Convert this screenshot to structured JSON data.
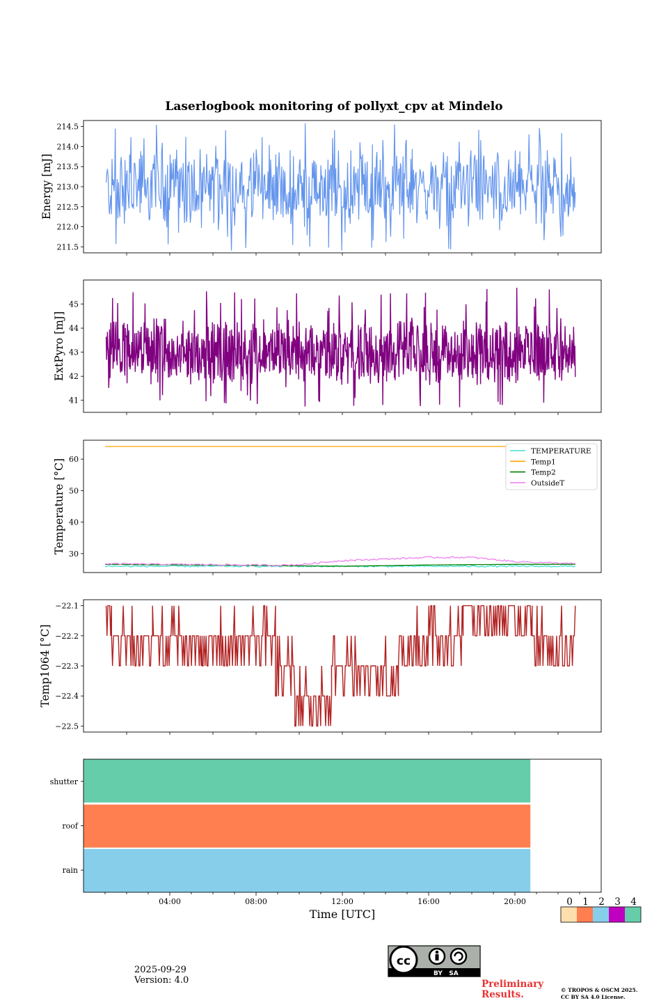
{
  "figure": {
    "title": "Laserlogbook monitoring of pollyxt_cpv at Mindelo",
    "xlabel": "Time [UTC]",
    "xticks": [
      "04:00",
      "08:00",
      "12:00",
      "16:00",
      "20:00"
    ],
    "xrange_hours": [
      0,
      24
    ]
  },
  "chart_data": [
    {
      "type": "line",
      "ylabel": "Energy [mJ]",
      "ylim": [
        211.35,
        214.65
      ],
      "yticks": [
        "211.5",
        "212.0",
        "212.5",
        "213.0",
        "213.5",
        "214.0",
        "214.5"
      ],
      "color": "#6495ed",
      "series": [
        {
          "name": "Energy",
          "x_start_hour": 1.05,
          "x_end_hour": 22.8,
          "mean": 212.95,
          "min": 211.4,
          "max": 214.6
        }
      ]
    },
    {
      "type": "line",
      "ylabel": "ExtPyro [mJ]",
      "ylim": [
        40.5,
        46.0
      ],
      "yticks": [
        "41",
        "42",
        "43",
        "44",
        "45"
      ],
      "color": "#800080",
      "series": [
        {
          "name": "ExtPyro",
          "x_start_hour": 1.05,
          "x_end_hour": 22.8,
          "mean": 43.0,
          "min": 40.7,
          "max": 45.7
        }
      ]
    },
    {
      "type": "line",
      "ylabel": "Temperature [°C]",
      "ylim": [
        24,
        66
      ],
      "yticks": [
        "30",
        "40",
        "50",
        "60"
      ],
      "legend": "top-right",
      "series": [
        {
          "name": "TEMPERATURE",
          "color": "#40e0d0",
          "x": [
            1,
            22.8
          ],
          "y": [
            26.0,
            26.0
          ]
        },
        {
          "name": "Temp1",
          "color": "#ffa500",
          "x": [
            1,
            22.8
          ],
          "y": [
            64.0,
            64.0
          ]
        },
        {
          "name": "Temp2",
          "color": "#008000",
          "x": [
            1,
            9,
            12,
            16,
            20,
            22.8
          ],
          "y": [
            26.6,
            26.2,
            26.0,
            26.4,
            26.6,
            26.6
          ]
        },
        {
          "name": "OutsideT",
          "color": "#ee82ee",
          "x": [
            1,
            9,
            10,
            12,
            14,
            16,
            18,
            20,
            22.8
          ],
          "y": [
            26.8,
            26.3,
            26.5,
            27.8,
            28.3,
            28.8,
            28.8,
            27.5,
            26.8
          ]
        }
      ]
    },
    {
      "type": "line",
      "ylabel": "Temp1064 [°C]",
      "ylim": [
        -22.52,
        -22.08
      ],
      "yticks": [
        "−22.1",
        "−22.2",
        "−22.3",
        "−22.4",
        "−22.5"
      ],
      "color": "#b22222",
      "series": [
        {
          "name": "Temp1064",
          "levels": [
            -22.1,
            -22.2,
            -22.3,
            -22.4,
            -22.5
          ],
          "segments_hours": [
            [
              1.05,
              1.3,
              -22.1
            ],
            [
              1.3,
              3.2,
              -22.2
            ],
            [
              3.2,
              5.5,
              -22.2
            ],
            [
              5.5,
              8.9,
              -22.2
            ],
            [
              8.9,
              9.8,
              -22.3
            ],
            [
              9.8,
              11.5,
              -22.4
            ],
            [
              11.5,
              13.0,
              -22.3
            ],
            [
              13.0,
              14.6,
              -22.3
            ],
            [
              14.6,
              17.6,
              -22.2
            ],
            [
              17.6,
              20.8,
              -22.1
            ],
            [
              20.8,
              22.8,
              -22.2
            ]
          ]
        }
      ]
    },
    {
      "type": "heatmap",
      "rows": [
        "shutter",
        "roof",
        "rain"
      ],
      "end_hour": 20.7,
      "row_values": [
        4,
        1,
        2
      ],
      "colorbar": {
        "ticks": [
          "0",
          "1",
          "2",
          "3",
          "4"
        ],
        "colors": [
          "#ffdead",
          "#ff7f50",
          "#87ceeb",
          "#c000c0",
          "#66cdaa"
        ]
      }
    }
  ],
  "footer": {
    "date": "2025-09-29",
    "version": "Version: 4.0",
    "license_badge": "BY   SA",
    "preliminary": [
      "Preliminary",
      "Results."
    ],
    "copyright": [
      "© TROPOS & OSCM 2025.",
      "CC BY SA 4.0 License."
    ]
  }
}
